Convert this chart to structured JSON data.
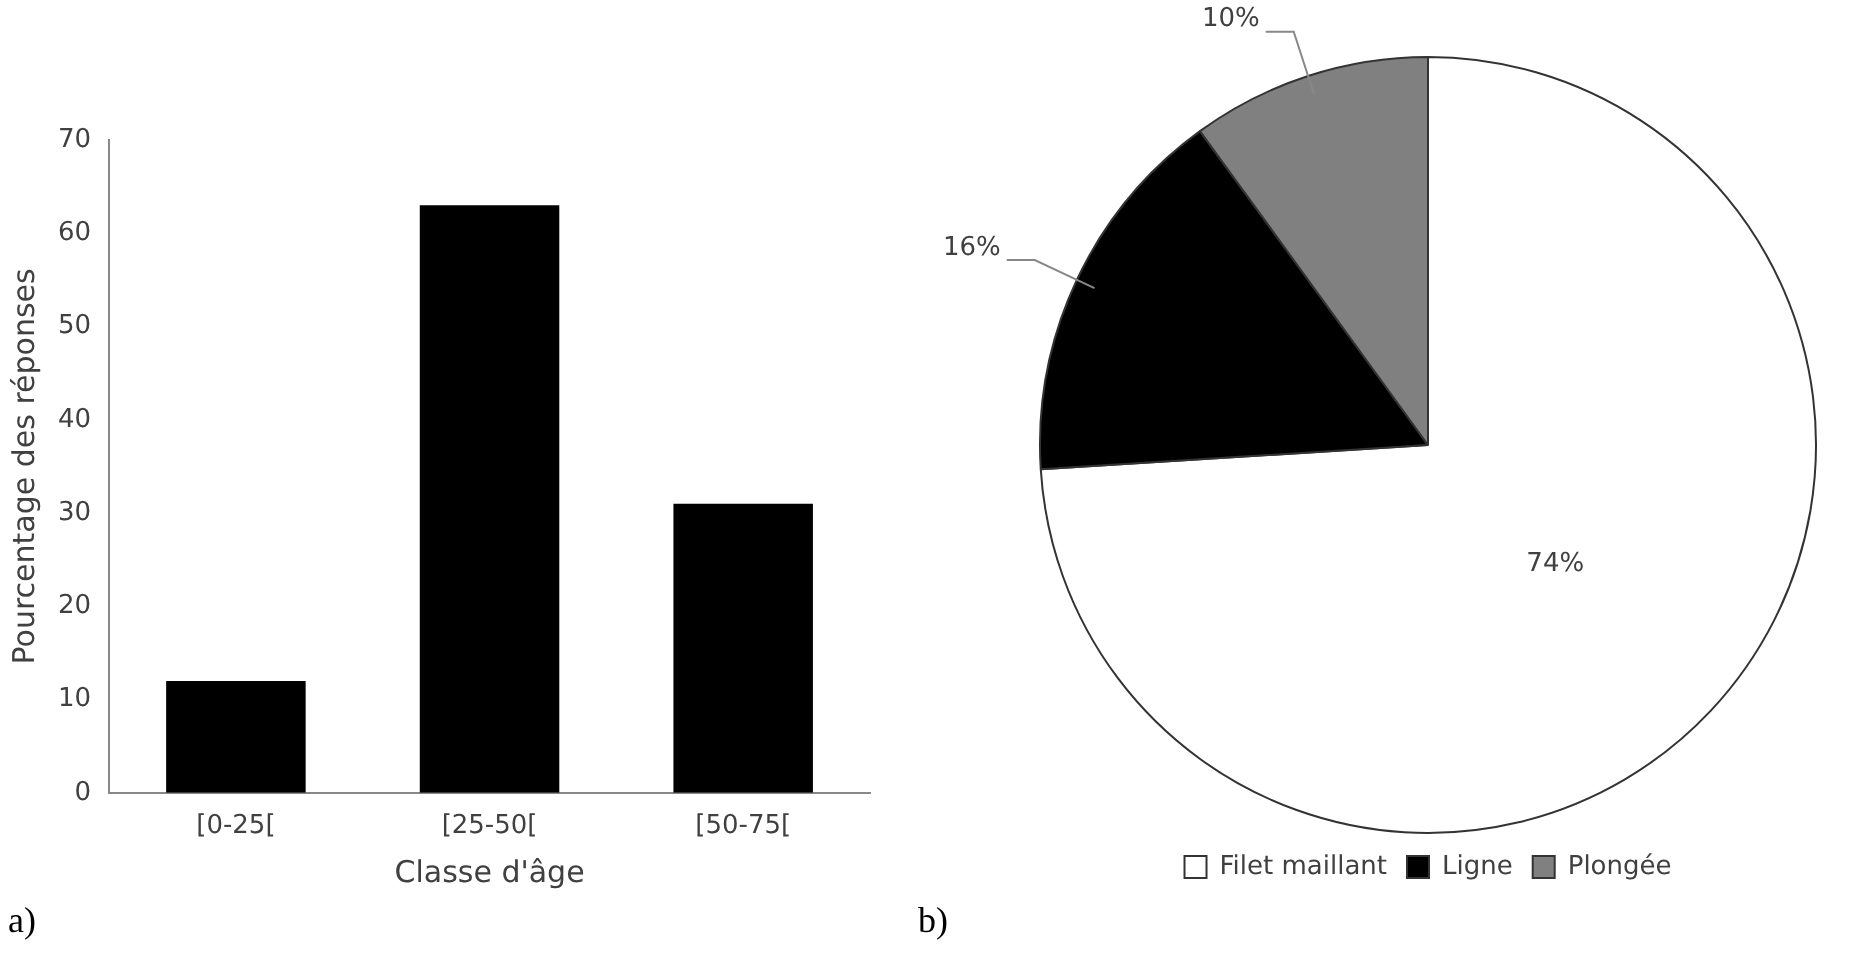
{
  "chart_data": [
    {
      "type": "bar",
      "xlabel": "Classe d'âge",
      "ylabel": "Pourcentage des réponses",
      "categories": [
        "[0-25[",
        "[25-50[",
        "[50-75["
      ],
      "values": [
        12,
        63,
        31
      ],
      "color": "#000000",
      "ylim": [
        0,
        70
      ],
      "yticks": [
        0,
        10,
        20,
        30,
        40,
        50,
        60,
        70
      ],
      "grid": false,
      "annotations": [
        "a)"
      ]
    },
    {
      "type": "pie",
      "categories": [
        "Filet maillant",
        "Ligne",
        "Plongée"
      ],
      "values": [
        74,
        16,
        10
      ],
      "colors": [
        "#ffffff",
        "#000000",
        "#808080"
      ],
      "legend": "bottom",
      "value_labels": [
        "74%",
        "16%",
        "10%"
      ],
      "annotations": [
        "b)"
      ]
    }
  ]
}
